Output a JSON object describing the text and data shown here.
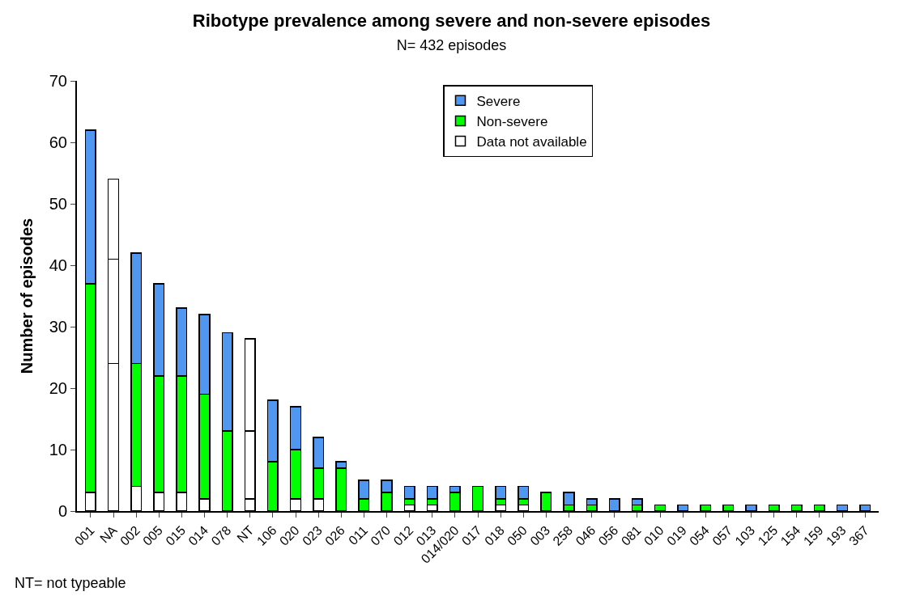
{
  "chart_data": {
    "type": "bar",
    "stacked": true,
    "title": "Ribotype prevalence among severe and non-severe episodes",
    "subtitle": "N= 432 episodes",
    "ylabel": "Number of episodes",
    "categories": [
      "001",
      "NA",
      "002",
      "005",
      "015",
      "014",
      "078",
      "NT",
      "106",
      "020",
      "023",
      "026",
      "011",
      "070",
      "012",
      "013",
      "014/020",
      "017",
      "018",
      "050",
      "003",
      "258",
      "046",
      "056",
      "081",
      "010",
      "019",
      "054",
      "057",
      "103",
      "125",
      "154",
      "159",
      "193",
      "367"
    ],
    "series": [
      {
        "name": "Data not available",
        "color": "#ffffff",
        "values": [
          3,
          24,
          4,
          3,
          3,
          2,
          0,
          2,
          0,
          2,
          2,
          0,
          0,
          0,
          1,
          1,
          0,
          0,
          1,
          1,
          0,
          0,
          0,
          0,
          0,
          0,
          0,
          0,
          0,
          0,
          0,
          0,
          0,
          0,
          0
        ]
      },
      {
        "name": "Non-severe",
        "color": "#00ff00",
        "colors": [
          "#00ff00",
          "#ffffff",
          "#00ff00",
          "#00ff00",
          "#00ff00",
          "#00ff00",
          "#00ff00",
          "#ffffff",
          "#00ff00",
          "#00ff00",
          "#00ff00",
          "#00ff00",
          "#00ff00",
          "#00ff00",
          "#00ff00",
          "#00ff00",
          "#00ff00",
          "#00ff00",
          "#00ff00",
          "#00ff00",
          "#00ff00",
          "#00ff00",
          "#00ff00",
          "#00ff00",
          "#00ff00",
          "#00ff00",
          "#00ff00",
          "#00ff00",
          "#00ff00",
          "#00ff00",
          "#00ff00",
          "#00ff00",
          "#00ff00",
          "#00ff00",
          "#00ff00"
        ],
        "values": [
          34,
          17,
          20,
          19,
          19,
          17,
          13,
          11,
          8,
          8,
          5,
          7,
          2,
          3,
          1,
          1,
          3,
          4,
          1,
          1,
          3,
          1,
          1,
          0,
          1,
          1,
          0,
          1,
          1,
          0,
          1,
          1,
          1,
          0,
          0
        ]
      },
      {
        "name": "Severe",
        "color": "#4f97f0",
        "colors": [
          "#4f97f0",
          "#ffffff",
          "#4f97f0",
          "#4f97f0",
          "#4f97f0",
          "#4f97f0",
          "#4f97f0",
          "#ffffff",
          "#4f97f0",
          "#4f97f0",
          "#4f97f0",
          "#4f97f0",
          "#4f97f0",
          "#4f97f0",
          "#4f97f0",
          "#4f97f0",
          "#4f97f0",
          "#4f97f0",
          "#4f97f0",
          "#4f97f0",
          "#4f97f0",
          "#4f97f0",
          "#4f97f0",
          "#4f97f0",
          "#4f97f0",
          "#4f97f0",
          "#4f97f0",
          "#4f97f0",
          "#4f97f0",
          "#4f97f0",
          "#4f97f0",
          "#4f97f0",
          "#4f97f0",
          "#4f97f0",
          "#4f97f0"
        ],
        "values": [
          25,
          13,
          18,
          15,
          11,
          13,
          16,
          15,
          10,
          7,
          5,
          1,
          3,
          2,
          2,
          2,
          1,
          0,
          2,
          2,
          0,
          2,
          1,
          2,
          1,
          0,
          1,
          0,
          0,
          1,
          0,
          0,
          0,
          1,
          1
        ]
      }
    ],
    "ylim": [
      0,
      70
    ],
    "yticks": [
      0,
      10,
      20,
      30,
      40,
      50,
      60,
      70
    ],
    "grid": false,
    "legend": "top",
    "annotations": [
      "NT= not typeable"
    ]
  }
}
